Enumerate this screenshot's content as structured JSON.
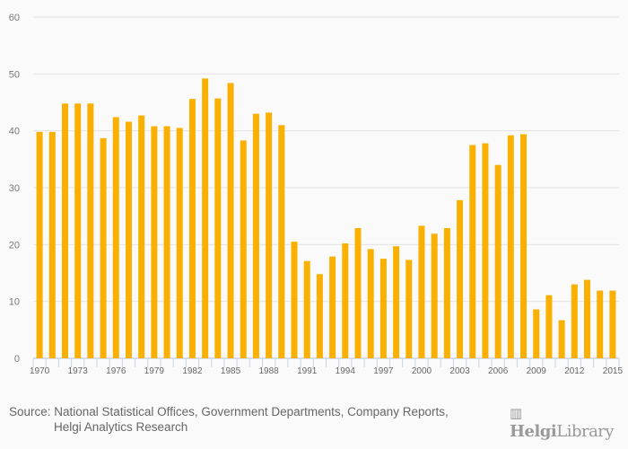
{
  "chart_data": {
    "type": "bar",
    "title": "",
    "xlabel": "",
    "ylabel": "",
    "ylim": [
      0,
      60
    ],
    "yticks": [
      0,
      10,
      20,
      30,
      40,
      50,
      60
    ],
    "grid": true,
    "color": "#f9b000",
    "categories": [
      "1970",
      "1971",
      "1972",
      "1973",
      "1974",
      "1975",
      "1976",
      "1977",
      "1978",
      "1979",
      "1980",
      "1981",
      "1982",
      "1983",
      "1984",
      "1985",
      "1986",
      "1987",
      "1988",
      "1989",
      "1990",
      "1991",
      "1992",
      "1993",
      "1994",
      "1995",
      "1996",
      "1997",
      "1998",
      "1999",
      "2000",
      "2001",
      "2002",
      "2003",
      "2004",
      "2005",
      "2006",
      "2007",
      "2008",
      "2009",
      "2010",
      "2011",
      "2012",
      "2013",
      "2014",
      "2015"
    ],
    "xtick_labels": [
      "1970",
      "1973",
      "1976",
      "1979",
      "1982",
      "1985",
      "1988",
      "1991",
      "1994",
      "1997",
      "2000",
      "2003",
      "2006",
      "2009",
      "2012",
      "2015"
    ],
    "values": [
      39.8,
      39.8,
      44.8,
      44.8,
      44.8,
      38.7,
      42.4,
      41.6,
      42.7,
      40.8,
      40.8,
      40.5,
      45.6,
      49.2,
      45.7,
      48.4,
      38.3,
      43.0,
      43.2,
      41.0,
      20.5,
      17.1,
      14.8,
      17.9,
      20.2,
      22.9,
      19.2,
      17.5,
      19.7,
      17.3,
      23.3,
      21.9,
      22.9,
      27.8,
      37.5,
      37.8,
      34.0,
      39.2,
      39.4,
      8.6,
      11.1,
      6.7,
      13.0,
      13.8,
      11.9,
      11.9
    ]
  },
  "source": {
    "line1": "Source: National Statistical Offices, Government Departments, Company Reports,",
    "line2": "Helgi Analytics Research"
  },
  "logo": {
    "bold": "Helgi",
    "rest": "Library"
  }
}
